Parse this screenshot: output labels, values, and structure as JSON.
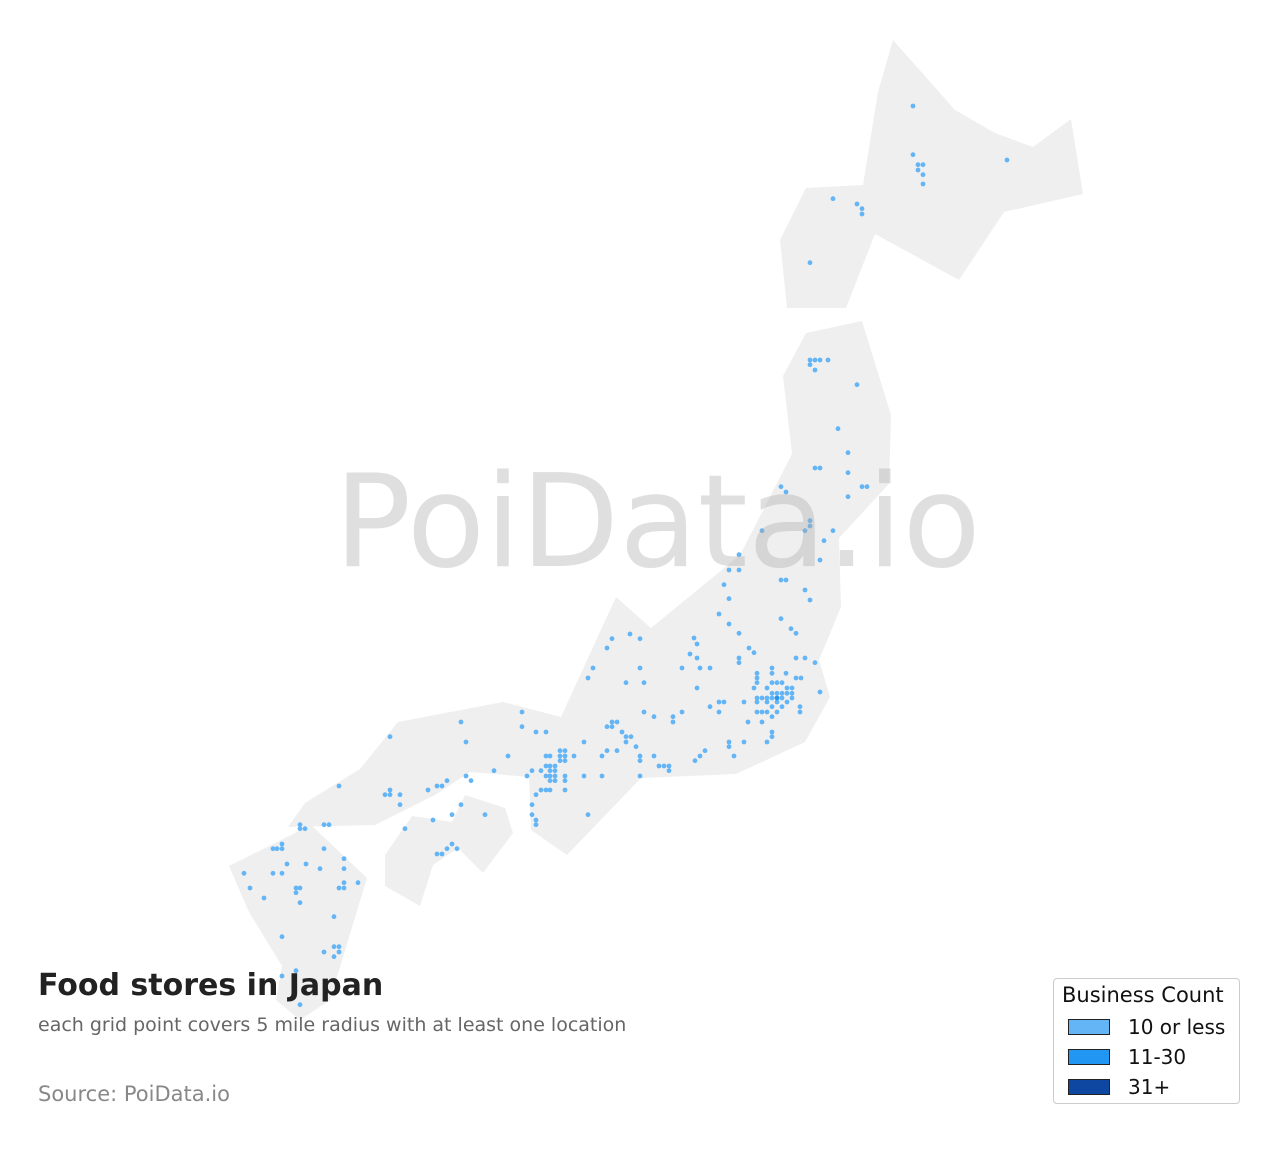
{
  "title": "Food stores in Japan",
  "subtitle": "each grid point covers 5 mile radius with at least one location",
  "source": "Source: PoiData.io",
  "watermark": "PoiData.io",
  "legend": {
    "title": "Business Count",
    "items": [
      {
        "label": "10 or less",
        "color": "#64b5f6"
      },
      {
        "label": "11-30",
        "color": "#2196f3"
      },
      {
        "label": "31+",
        "color": "#0d47a1"
      }
    ]
  },
  "colors": {
    "land": "#efefef",
    "point": "#64b5f6"
  },
  "points_11_30": [
    [
      140.54,
      35.63
    ]
  ],
  "points_10_or_less": [
    [
      143.26,
      44.51
    ],
    [
      143.26,
      43.78
    ],
    [
      143.36,
      43.63
    ],
    [
      143.46,
      43.63
    ],
    [
      143.36,
      43.55
    ],
    [
      143.46,
      43.48
    ],
    [
      143.46,
      43.34
    ],
    [
      145.14,
      43.7
    ],
    [
      141.66,
      43.12
    ],
    [
      142.14,
      43.04
    ],
    [
      142.24,
      42.97
    ],
    [
      142.24,
      42.89
    ],
    [
      141.2,
      42.16
    ],
    [
      141.2,
      40.7
    ],
    [
      141.3,
      40.7
    ],
    [
      141.4,
      40.7
    ],
    [
      141.56,
      40.7
    ],
    [
      141.2,
      40.63
    ],
    [
      141.3,
      40.55
    ],
    [
      142.14,
      40.33
    ],
    [
      141.76,
      39.67
    ],
    [
      141.96,
      39.31
    ],
    [
      141.3,
      39.08
    ],
    [
      141.4,
      39.08
    ],
    [
      141.96,
      39.01
    ],
    [
      141.96,
      38.65
    ],
    [
      142.24,
      38.8
    ],
    [
      142.34,
      38.8
    ],
    [
      140.62,
      38.8
    ],
    [
      140.72,
      38.72
    ],
    [
      141.2,
      38.29
    ],
    [
      141.2,
      38.21
    ],
    [
      141.1,
      38.14
    ],
    [
      141.66,
      38.14
    ],
    [
      141.48,
      37.99
    ],
    [
      140.24,
      38.14
    ],
    [
      139.78,
      37.78
    ],
    [
      139.58,
      37.55
    ],
    [
      139.78,
      37.55
    ],
    [
      139.48,
      37.33
    ],
    [
      139.58,
      37.12
    ],
    [
      141.4,
      37.7
    ],
    [
      140.62,
      37.4
    ],
    [
      140.72,
      37.4
    ],
    [
      141.1,
      37.25
    ],
    [
      141.2,
      37.1
    ],
    [
      139.38,
      36.89
    ],
    [
      139.58,
      36.74
    ],
    [
      139.78,
      36.6
    ],
    [
      140.62,
      36.82
    ],
    [
      140.82,
      36.67
    ],
    [
      140.92,
      36.6
    ],
    [
      139.78,
      36.23
    ],
    [
      139.78,
      36.16
    ],
    [
      139.98,
      36.38
    ],
    [
      140.08,
      36.31
    ],
    [
      140.92,
      36.23
    ],
    [
      141.1,
      36.23
    ],
    [
      141.3,
      36.16
    ],
    [
      140.44,
      36.08
    ],
    [
      140.72,
      36.0
    ],
    [
      140.14,
      36.0
    ],
    [
      140.14,
      35.93
    ],
    [
      140.14,
      35.86
    ],
    [
      140.44,
      36.0
    ],
    [
      140.34,
      35.78
    ],
    [
      140.44,
      35.86
    ],
    [
      140.54,
      35.86
    ],
    [
      140.64,
      35.86
    ],
    [
      140.92,
      35.93
    ],
    [
      141.02,
      35.93
    ],
    [
      140.08,
      35.78
    ],
    [
      140.74,
      35.78
    ],
    [
      140.84,
      35.78
    ],
    [
      140.44,
      35.7
    ],
    [
      140.54,
      35.7
    ],
    [
      140.64,
      35.7
    ],
    [
      140.74,
      35.7
    ],
    [
      140.84,
      35.7
    ],
    [
      140.14,
      35.63
    ],
    [
      140.24,
      35.63
    ],
    [
      140.34,
      35.63
    ],
    [
      140.44,
      35.63
    ],
    [
      140.64,
      35.63
    ],
    [
      140.84,
      35.63
    ],
    [
      140.14,
      35.57
    ],
    [
      140.34,
      35.57
    ],
    [
      140.54,
      35.57
    ],
    [
      140.74,
      35.57
    ],
    [
      140.14,
      35.42
    ],
    [
      140.24,
      35.42
    ],
    [
      140.34,
      35.42
    ],
    [
      140.44,
      35.5
    ],
    [
      140.64,
      35.5
    ],
    [
      141.0,
      35.5
    ],
    [
      141.0,
      35.42
    ],
    [
      140.44,
      35.35
    ],
    [
      140.54,
      35.42
    ],
    [
      141.4,
      35.72
    ],
    [
      140.24,
      35.27
    ],
    [
      140.44,
      35.12
    ],
    [
      140.44,
      35.05
    ],
    [
      140.34,
      34.97
    ],
    [
      139.96,
      35.27
    ],
    [
      139.88,
      34.97
    ],
    [
      139.68,
      34.76
    ],
    [
      139.58,
      34.97
    ],
    [
      139.58,
      34.9
    ],
    [
      139.1,
      34.84
    ],
    [
      139.0,
      34.76
    ],
    [
      138.9,
      34.69
    ],
    [
      138.88,
      36.53
    ],
    [
      138.94,
      36.44
    ],
    [
      138.8,
      36.29
    ],
    [
      138.94,
      36.23
    ],
    [
      138.64,
      36.08
    ],
    [
      139.0,
      36.08
    ],
    [
      139.2,
      36.08
    ],
    [
      138.94,
      35.78
    ],
    [
      139.2,
      35.5
    ],
    [
      139.38,
      35.57
    ],
    [
      139.48,
      35.57
    ],
    [
      139.38,
      35.42
    ],
    [
      139.88,
      35.57
    ],
    [
      138.64,
      35.42
    ],
    [
      138.46,
      35.35
    ],
    [
      138.46,
      35.27
    ],
    [
      138.08,
      35.35
    ],
    [
      137.88,
      35.42
    ],
    [
      137.8,
      36.08
    ],
    [
      137.88,
      35.86
    ],
    [
      137.52,
      35.86
    ],
    [
      137.8,
      36.52
    ],
    [
      137.6,
      36.59
    ],
    [
      137.24,
      36.52
    ],
    [
      137.14,
      36.38
    ],
    [
      136.86,
      36.08
    ],
    [
      136.76,
      35.93
    ],
    [
      137.24,
      35.27
    ],
    [
      137.14,
      35.2
    ],
    [
      137.24,
      35.2
    ],
    [
      137.34,
      35.27
    ],
    [
      137.44,
      35.12
    ],
    [
      137.52,
      35.05
    ],
    [
      137.62,
      35.05
    ],
    [
      137.52,
      34.97
    ],
    [
      137.72,
      34.9
    ],
    [
      137.34,
      34.84
    ],
    [
      137.14,
      34.84
    ],
    [
      137.04,
      34.76
    ],
    [
      137.8,
      34.76
    ],
    [
      137.8,
      34.69
    ],
    [
      138.08,
      34.76
    ],
    [
      138.18,
      34.61
    ],
    [
      138.28,
      34.61
    ],
    [
      138.38,
      34.61
    ],
    [
      138.38,
      34.54
    ],
    [
      137.8,
      34.46
    ],
    [
      137.04,
      34.46
    ],
    [
      136.76,
      33.88
    ],
    [
      136.68,
      34.46
    ],
    [
      136.68,
      34.97
    ],
    [
      135.44,
      35.42
    ],
    [
      135.44,
      35.2
    ],
    [
      135.72,
      35.12
    ],
    [
      135.92,
      35.12
    ],
    [
      136.2,
      34.84
    ],
    [
      136.3,
      34.84
    ],
    [
      136.2,
      34.76
    ],
    [
      136.3,
      34.76
    ],
    [
      135.92,
      34.76
    ],
    [
      136.0,
      34.76
    ],
    [
      136.48,
      34.76
    ],
    [
      136.2,
      34.69
    ],
    [
      136.3,
      34.69
    ],
    [
      135.92,
      34.61
    ],
    [
      136.1,
      34.61
    ],
    [
      136.0,
      34.61
    ],
    [
      135.64,
      34.54
    ],
    [
      135.82,
      34.54
    ],
    [
      136.0,
      34.54
    ],
    [
      136.1,
      34.54
    ],
    [
      135.54,
      34.46
    ],
    [
      135.92,
      34.46
    ],
    [
      136.0,
      34.46
    ],
    [
      136.1,
      34.46
    ],
    [
      136.3,
      34.46
    ],
    [
      136.0,
      34.39
    ],
    [
      136.1,
      34.39
    ],
    [
      136.3,
      34.39
    ],
    [
      135.82,
      34.25
    ],
    [
      135.92,
      34.25
    ],
    [
      136.0,
      34.25
    ],
    [
      136.3,
      34.25
    ],
    [
      135.72,
      34.18
    ],
    [
      135.64,
      34.03
    ],
    [
      135.64,
      33.88
    ],
    [
      135.72,
      33.8
    ],
    [
      135.72,
      33.73
    ],
    [
      134.22,
      35.27
    ],
    [
      134.32,
      34.97
    ],
    [
      132.8,
      35.05
    ],
    [
      135.16,
      34.76
    ],
    [
      134.88,
      34.54
    ],
    [
      134.32,
      34.46
    ],
    [
      134.42,
      34.39
    ],
    [
      133.94,
      34.39
    ],
    [
      133.74,
      34.31
    ],
    [
      133.84,
      34.31
    ],
    [
      133.56,
      34.25
    ],
    [
      132.8,
      34.25
    ],
    [
      132.7,
      34.18
    ],
    [
      132.8,
      34.18
    ],
    [
      133.0,
      34.18
    ],
    [
      133.0,
      34.03
    ],
    [
      134.22,
      34.03
    ],
    [
      134.04,
      33.88
    ],
    [
      134.7,
      33.88
    ],
    [
      133.66,
      33.8
    ],
    [
      133.1,
      33.67
    ],
    [
      133.74,
      33.29
    ],
    [
      133.84,
      33.29
    ],
    [
      133.94,
      33.37
    ],
    [
      134.04,
      33.44
    ],
    [
      134.14,
      33.37
    ],
    [
      131.78,
      34.31
    ],
    [
      131.48,
      33.73
    ],
    [
      131.58,
      33.73
    ],
    [
      131.0,
      33.73
    ],
    [
      131.0,
      33.67
    ],
    [
      131.1,
      33.67
    ],
    [
      130.64,
      33.44
    ],
    [
      130.46,
      33.37
    ],
    [
      130.54,
      33.37
    ],
    [
      130.64,
      33.37
    ],
    [
      130.74,
      33.14
    ],
    [
      131.12,
      33.14
    ],
    [
      131.48,
      33.37
    ],
    [
      131.4,
      33.07
    ],
    [
      131.88,
      33.22
    ],
    [
      131.88,
      33.07
    ],
    [
      132.16,
      32.86
    ],
    [
      131.88,
      32.86
    ],
    [
      131.78,
      32.78
    ],
    [
      131.88,
      32.78
    ],
    [
      129.88,
      33.0
    ],
    [
      130.46,
      33.0
    ],
    [
      130.64,
      33.0
    ],
    [
      130.92,
      32.78
    ],
    [
      131.0,
      32.78
    ],
    [
      130.92,
      32.71
    ],
    [
      130.0,
      32.78
    ],
    [
      130.28,
      32.63
    ],
    [
      131.0,
      32.56
    ],
    [
      131.68,
      32.35
    ],
    [
      130.64,
      32.05
    ],
    [
      131.68,
      31.9
    ],
    [
      131.78,
      31.9
    ],
    [
      131.48,
      31.82
    ],
    [
      131.78,
      31.82
    ],
    [
      131.68,
      31.75
    ],
    [
      130.64,
      31.46
    ],
    [
      130.92,
      31.54
    ],
    [
      131.0,
      31.03
    ]
  ]
}
